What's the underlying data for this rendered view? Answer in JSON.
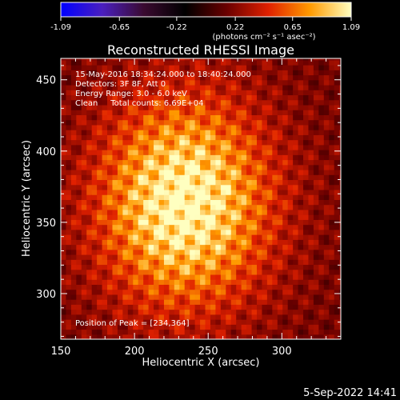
{
  "colorbar": {
    "tick_labels": [
      "-1.09",
      "-0.65",
      "-0.22",
      "0.22",
      "0.65",
      "1.09"
    ],
    "range": [
      -1.09,
      1.09
    ],
    "unit_label": "(photons cm⁻² s⁻¹ asec⁻²)",
    "colormap_stops": [
      "#0000ff",
      "#4a1fbf",
      "#3a0a30",
      "#000000",
      "#6a0000",
      "#e02000",
      "#ff9a00",
      "#ffffc0"
    ]
  },
  "chart_data": {
    "type": "heatmap",
    "title": "Reconstructed RHESSI Image",
    "xlabel": "Heliocentric X (arcsec)",
    "ylabel": "Heliocentric Y (arcsec)",
    "xlim": [
      150,
      340
    ],
    "ylim": [
      268,
      465
    ],
    "x_ticks": [
      150,
      200,
      250,
      300
    ],
    "y_ticks": [
      300,
      350,
      400,
      450
    ],
    "peak": [
      234,
      364
    ],
    "source_sigma_arcsec": [
      40,
      50
    ],
    "grid": false
  },
  "annotations": {
    "line1": "15-May-2016 18:34:24.000 to 18:40:24.000",
    "line2": "Detectors: 3F 8F, Att 0",
    "line3": "Energy Range: 3.0 - 6.0 keV",
    "line4": "Clean     Total counts: 6.69E+04",
    "peak_label": "Position of Peak = [234,364]"
  },
  "footer": {
    "date_stamp": "5-Sep-2022 14:41"
  }
}
